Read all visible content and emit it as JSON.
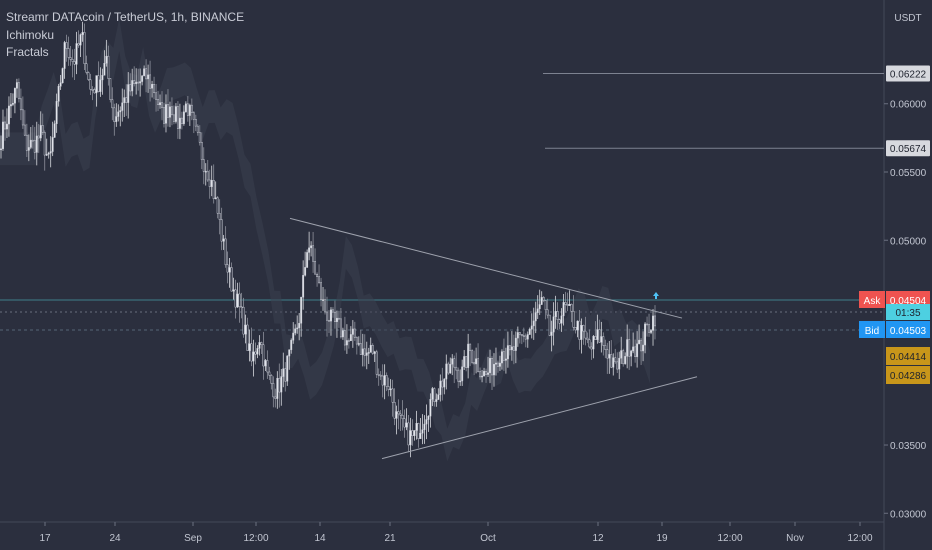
{
  "chart_data": {
    "type": "candlestick",
    "title": "Streamr DATAcoin / TetherUS, 1h, BINANCE",
    "indicators": [
      "Ichimoku",
      "Fractals"
    ],
    "currency": "USDT",
    "y_axis": {
      "range": [
        0.0298,
        0.0676
      ],
      "ticks": [
        0.06,
        0.055,
        0.05,
        0.035,
        0.03
      ],
      "tick_labels": [
        "0.06000",
        "0.05500",
        "0.05000",
        "0.03500",
        "0.03000"
      ]
    },
    "x_axis": {
      "tick_labels": [
        "17",
        "24",
        "Sep",
        "12:00",
        "14",
        "21",
        "Oct",
        "12",
        "19",
        "12:00",
        "Nov",
        "12:00"
      ]
    },
    "price_lines": [
      {
        "label": "0.06222",
        "value": 0.06222
      },
      {
        "label": "0.05674",
        "value": 0.05674
      }
    ],
    "ask": {
      "label": "Ask",
      "value": 0.04504,
      "text": "0.04504"
    },
    "countdown": "01:35",
    "bid": {
      "label": "Bid",
      "value": 0.04503,
      "text": "0.04503"
    },
    "levels": [
      {
        "value": 0.04414,
        "text": "0.04414"
      },
      {
        "value": 0.04286,
        "text": "0.04286"
      }
    ],
    "trendlines": [
      {
        "name": "upper",
        "from_price": 0.0516,
        "to_price": 0.0443
      },
      {
        "name": "lower",
        "from_price": 0.034,
        "to_price": 0.04
      }
    ],
    "price_path": [
      [
        0.0575,
        0.0595,
        0.0612,
        0.057
      ],
      [
        0.057,
        0.0578,
        0.0555
      ],
      [
        0.06,
        0.0645,
        0.063,
        0.065,
        0.061,
        0.0615,
        0.063,
        0.059
      ],
      [
        0.06,
        0.061,
        0.0615,
        0.062,
        0.061
      ],
      [
        0.059,
        0.06,
        0.0585,
        0.06
      ],
      [
        0.058,
        0.056,
        0.0545,
        0.0515
      ],
      [
        0.048,
        0.046,
        0.044,
        0.041
      ],
      [
        0.043,
        0.04,
        0.039,
        0.04,
        0.042
      ],
      [
        0.0445,
        0.05,
        0.0475,
        0.045,
        0.044
      ],
      [
        0.0435,
        0.0425,
        0.043,
        0.0415,
        0.042
      ],
      [
        0.04,
        0.0395,
        0.037,
        0.036,
        0.0355,
        0.0365
      ],
      [
        0.038,
        0.039,
        0.04,
        0.041
      ],
      [
        0.04,
        0.042,
        0.041,
        0.04,
        0.041
      ],
      [
        0.042,
        0.0415,
        0.0425,
        0.043
      ],
      [
        0.044,
        0.0455,
        0.043,
        0.0445,
        0.045,
        0.044
      ],
      [
        0.043,
        0.042,
        0.043,
        0.042,
        0.0405
      ],
      [
        0.0415,
        0.0425,
        0.042,
        0.0435,
        0.0445
      ]
    ]
  }
}
